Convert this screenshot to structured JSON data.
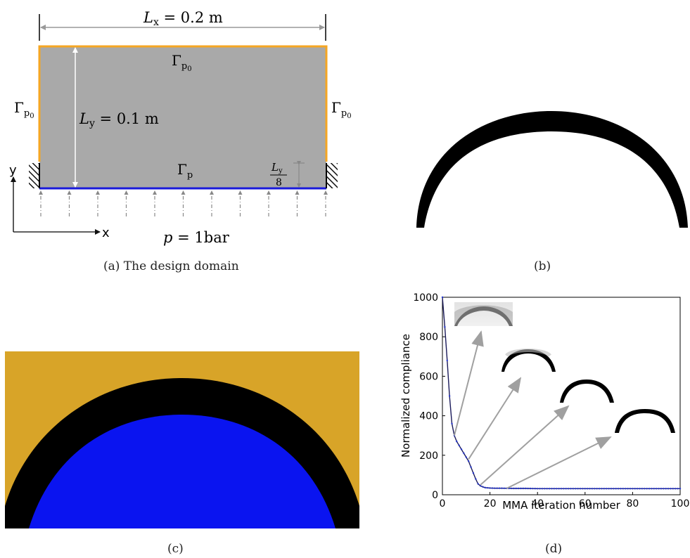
{
  "panel_a": {
    "caption": "(a) The design domain",
    "lx_sym": "L",
    "lx_sub": "x",
    "lx_val": " = 0.2 m",
    "ly_sym": "L",
    "ly_sub": "y",
    "ly_val": " = 0.1 m",
    "gamma": "Γ",
    "gamma_sub_p0": "p",
    "gamma_sub_0": "0",
    "gamma_sub_p": "p",
    "frac_num_sym": "L",
    "frac_num_sub": "y",
    "frac_den": "8",
    "pressure_sym": "p",
    "pressure_val": " = 1bar",
    "axis_x": "x",
    "axis_y": "y",
    "colors": {
      "domain": "#a9a9a9",
      "boundary_p0": "#f5a623",
      "boundary_p": "#1a1adb"
    }
  },
  "panel_b": {
    "caption": "(b)"
  },
  "panel_c": {
    "caption": "(c)",
    "colors": {
      "background": "#d8a428",
      "fluid": "#0a14f0",
      "material": "#000000"
    }
  },
  "panel_d": {
    "caption": "(d)"
  },
  "chart_data": {
    "type": "line",
    "xlabel": "MMA iteration number",
    "ylabel": "Normalized compliance",
    "xlim": [
      0,
      100
    ],
    "ylim": [
      0,
      1000
    ],
    "xticks": [
      0,
      20,
      40,
      60,
      80,
      100
    ],
    "yticks": [
      0,
      200,
      400,
      600,
      800,
      1000
    ],
    "grid": false,
    "series": [
      {
        "x": [
          0,
          1,
          2,
          3,
          4,
          5,
          6,
          7,
          8,
          9,
          10,
          11,
          12,
          13,
          14,
          15,
          16,
          17,
          18,
          20,
          22,
          25,
          30,
          35,
          40,
          50,
          60,
          70,
          80,
          90,
          100
        ],
        "y": [
          1000,
          850,
          680,
          500,
          360,
          300,
          270,
          250,
          230,
          210,
          190,
          170,
          140,
          110,
          80,
          55,
          45,
          40,
          36,
          34,
          33,
          33,
          32,
          32,
          31,
          31,
          31,
          31,
          31,
          31,
          31
        ]
      }
    ],
    "annotations": [
      {
        "from_x": 5,
        "from_y": 300,
        "image": "snapshot-1"
      },
      {
        "from_x": 11,
        "from_y": 180,
        "image": "snapshot-2"
      },
      {
        "from_x": 16,
        "from_y": 50,
        "image": "snapshot-3"
      },
      {
        "from_x": 27,
        "from_y": 32,
        "image": "snapshot-4"
      }
    ]
  }
}
